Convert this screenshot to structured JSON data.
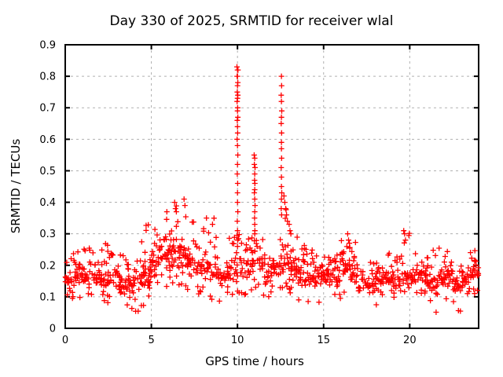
{
  "chart_data": {
    "type": "scatter",
    "title": "Day 330 of 2025, SRMTID for receiver wlal",
    "xlabel": "GPS time / hours",
    "ylabel": "SRMTID / TECUs",
    "xlim": [
      0,
      24
    ],
    "ylim": [
      0,
      0.9
    ],
    "xtick_values": [
      0,
      5,
      10,
      15,
      20
    ],
    "xtick_labels": [
      "0",
      "5",
      "10",
      "15",
      "20"
    ],
    "ytick_values": [
      0,
      0.1,
      0.2,
      0.3,
      0.4,
      0.5,
      0.6,
      0.7,
      0.8,
      0.9
    ],
    "ytick_labels": [
      "0",
      "0.1",
      "0.2",
      "0.3",
      "0.4",
      "0.5",
      "0.6",
      "0.7",
      "0.8",
      "0.9"
    ],
    "grid": true,
    "legend": "none",
    "marker": "plus",
    "series_color": "#ff0000",
    "grid_color": "#b0b0b0",
    "border_color": "#000000",
    "background_color": "#ffffff",
    "seed": 330,
    "spike_points": [
      [
        9.97,
        0.83
      ],
      [
        10.0,
        0.82
      ],
      [
        10.03,
        0.82
      ],
      [
        10.0,
        0.8
      ],
      [
        9.98,
        0.8
      ],
      [
        10.02,
        0.78
      ],
      [
        10.0,
        0.77
      ],
      [
        9.99,
        0.75
      ],
      [
        10.02,
        0.74
      ],
      [
        10.0,
        0.73
      ],
      [
        9.98,
        0.72
      ],
      [
        10.01,
        0.7
      ],
      [
        10.0,
        0.69
      ],
      [
        10.02,
        0.67
      ],
      [
        9.99,
        0.66
      ],
      [
        10.0,
        0.64
      ],
      [
        10.01,
        0.62
      ],
      [
        9.98,
        0.6
      ],
      [
        10.0,
        0.58
      ],
      [
        10.02,
        0.55
      ],
      [
        10.0,
        0.52
      ],
      [
        9.99,
        0.49
      ],
      [
        10.01,
        0.46
      ],
      [
        10.0,
        0.43
      ],
      [
        10.0,
        0.4
      ],
      [
        10.02,
        0.37
      ],
      [
        9.99,
        0.34
      ],
      [
        10.0,
        0.31
      ],
      [
        10.01,
        0.28
      ],
      [
        10.0,
        0.26
      ],
      [
        10.97,
        0.55
      ],
      [
        11.0,
        0.54
      ],
      [
        10.98,
        0.52
      ],
      [
        11.02,
        0.51
      ],
      [
        11.0,
        0.49
      ],
      [
        10.99,
        0.47
      ],
      [
        11.01,
        0.46
      ],
      [
        11.0,
        0.44
      ],
      [
        10.98,
        0.43
      ],
      [
        11.0,
        0.41
      ],
      [
        11.02,
        0.39
      ],
      [
        11.0,
        0.37
      ],
      [
        10.99,
        0.35
      ],
      [
        11.0,
        0.33
      ],
      [
        11.01,
        0.31
      ],
      [
        11.0,
        0.3
      ],
      [
        12.55,
        0.8
      ],
      [
        12.56,
        0.77
      ],
      [
        12.54,
        0.74
      ],
      [
        12.55,
        0.72
      ],
      [
        12.57,
        0.69
      ],
      [
        12.55,
        0.67
      ],
      [
        12.54,
        0.65
      ],
      [
        12.56,
        0.62
      ],
      [
        12.55,
        0.59
      ],
      [
        12.55,
        0.57
      ],
      [
        12.56,
        0.54
      ],
      [
        12.54,
        0.51
      ],
      [
        12.55,
        0.48
      ],
      [
        12.55,
        0.45
      ],
      [
        12.57,
        0.43
      ],
      [
        12.55,
        0.41
      ],
      [
        12.54,
        0.38
      ],
      [
        12.56,
        0.36
      ],
      [
        12.7,
        0.42
      ],
      [
        12.75,
        0.4
      ],
      [
        12.8,
        0.38
      ],
      [
        12.85,
        0.36
      ],
      [
        12.9,
        0.34
      ],
      [
        13.0,
        0.33
      ],
      [
        13.05,
        0.31
      ],
      [
        13.1,
        0.3
      ],
      [
        5.9,
        0.37
      ],
      [
        6.35,
        0.4
      ],
      [
        6.4,
        0.38
      ],
      [
        6.45,
        0.37
      ],
      [
        6.9,
        0.41
      ],
      [
        6.95,
        0.39
      ],
      [
        8.2,
        0.35
      ],
      [
        8.55,
        0.33
      ],
      [
        16.4,
        0.3
      ],
      [
        16.45,
        0.28
      ],
      [
        16.5,
        0.27
      ],
      [
        19.65,
        0.31
      ],
      [
        19.7,
        0.3
      ],
      [
        19.75,
        0.28
      ]
    ],
    "band_bins": [
      [
        0.09,
        0.12,
        0.2,
        0.26
      ],
      [
        0.09,
        0.13,
        0.2,
        0.27
      ],
      [
        0.08,
        0.13,
        0.21,
        0.27
      ],
      [
        0.09,
        0.13,
        0.2,
        0.25
      ],
      [
        0.08,
        0.12,
        0.2,
        0.28
      ],
      [
        0.08,
        0.12,
        0.19,
        0.26
      ],
      [
        0.07,
        0.11,
        0.19,
        0.25
      ],
      [
        0.06,
        0.1,
        0.18,
        0.24
      ],
      [
        0.05,
        0.1,
        0.2,
        0.28
      ],
      [
        0.05,
        0.12,
        0.24,
        0.33
      ],
      [
        0.1,
        0.15,
        0.26,
        0.34
      ],
      [
        0.12,
        0.17,
        0.28,
        0.38
      ],
      [
        0.12,
        0.17,
        0.28,
        0.4
      ],
      [
        0.13,
        0.18,
        0.3,
        0.42
      ],
      [
        0.12,
        0.16,
        0.26,
        0.34
      ],
      [
        0.1,
        0.14,
        0.24,
        0.3
      ],
      [
        0.09,
        0.13,
        0.24,
        0.35
      ],
      [
        0.08,
        0.13,
        0.22,
        0.36
      ],
      [
        0.08,
        0.12,
        0.2,
        0.3
      ],
      [
        0.1,
        0.14,
        0.24,
        0.3
      ],
      [
        0.1,
        0.14,
        0.24,
        0.32
      ],
      [
        0.12,
        0.15,
        0.24,
        0.3
      ],
      [
        0.1,
        0.14,
        0.26,
        0.4
      ],
      [
        0.1,
        0.13,
        0.22,
        0.28
      ],
      [
        0.12,
        0.15,
        0.24,
        0.3
      ],
      [
        0.12,
        0.16,
        0.28,
        0.42
      ],
      [
        0.1,
        0.14,
        0.24,
        0.34
      ],
      [
        0.07,
        0.12,
        0.21,
        0.28
      ],
      [
        0.07,
        0.12,
        0.2,
        0.26
      ],
      [
        0.08,
        0.12,
        0.19,
        0.24
      ],
      [
        0.08,
        0.12,
        0.2,
        0.26
      ],
      [
        0.09,
        0.13,
        0.21,
        0.28
      ],
      [
        0.1,
        0.14,
        0.23,
        0.3
      ],
      [
        0.09,
        0.13,
        0.21,
        0.28
      ],
      [
        0.07,
        0.11,
        0.18,
        0.24
      ],
      [
        0.05,
        0.1,
        0.17,
        0.22
      ],
      [
        0.07,
        0.11,
        0.19,
        0.26
      ],
      [
        0.08,
        0.12,
        0.19,
        0.24
      ],
      [
        0.08,
        0.12,
        0.19,
        0.24
      ],
      [
        0.09,
        0.13,
        0.22,
        0.31
      ],
      [
        0.08,
        0.12,
        0.2,
        0.26
      ],
      [
        0.1,
        0.13,
        0.21,
        0.27
      ],
      [
        0.06,
        0.1,
        0.19,
        0.25
      ],
      [
        0.04,
        0.09,
        0.2,
        0.27
      ],
      [
        0.08,
        0.12,
        0.21,
        0.27
      ],
      [
        0.05,
        0.1,
        0.17,
        0.22
      ],
      [
        0.08,
        0.12,
        0.19,
        0.24
      ],
      [
        0.1,
        0.13,
        0.21,
        0.25
      ]
    ],
    "bin_width_hours": 0.5
  }
}
